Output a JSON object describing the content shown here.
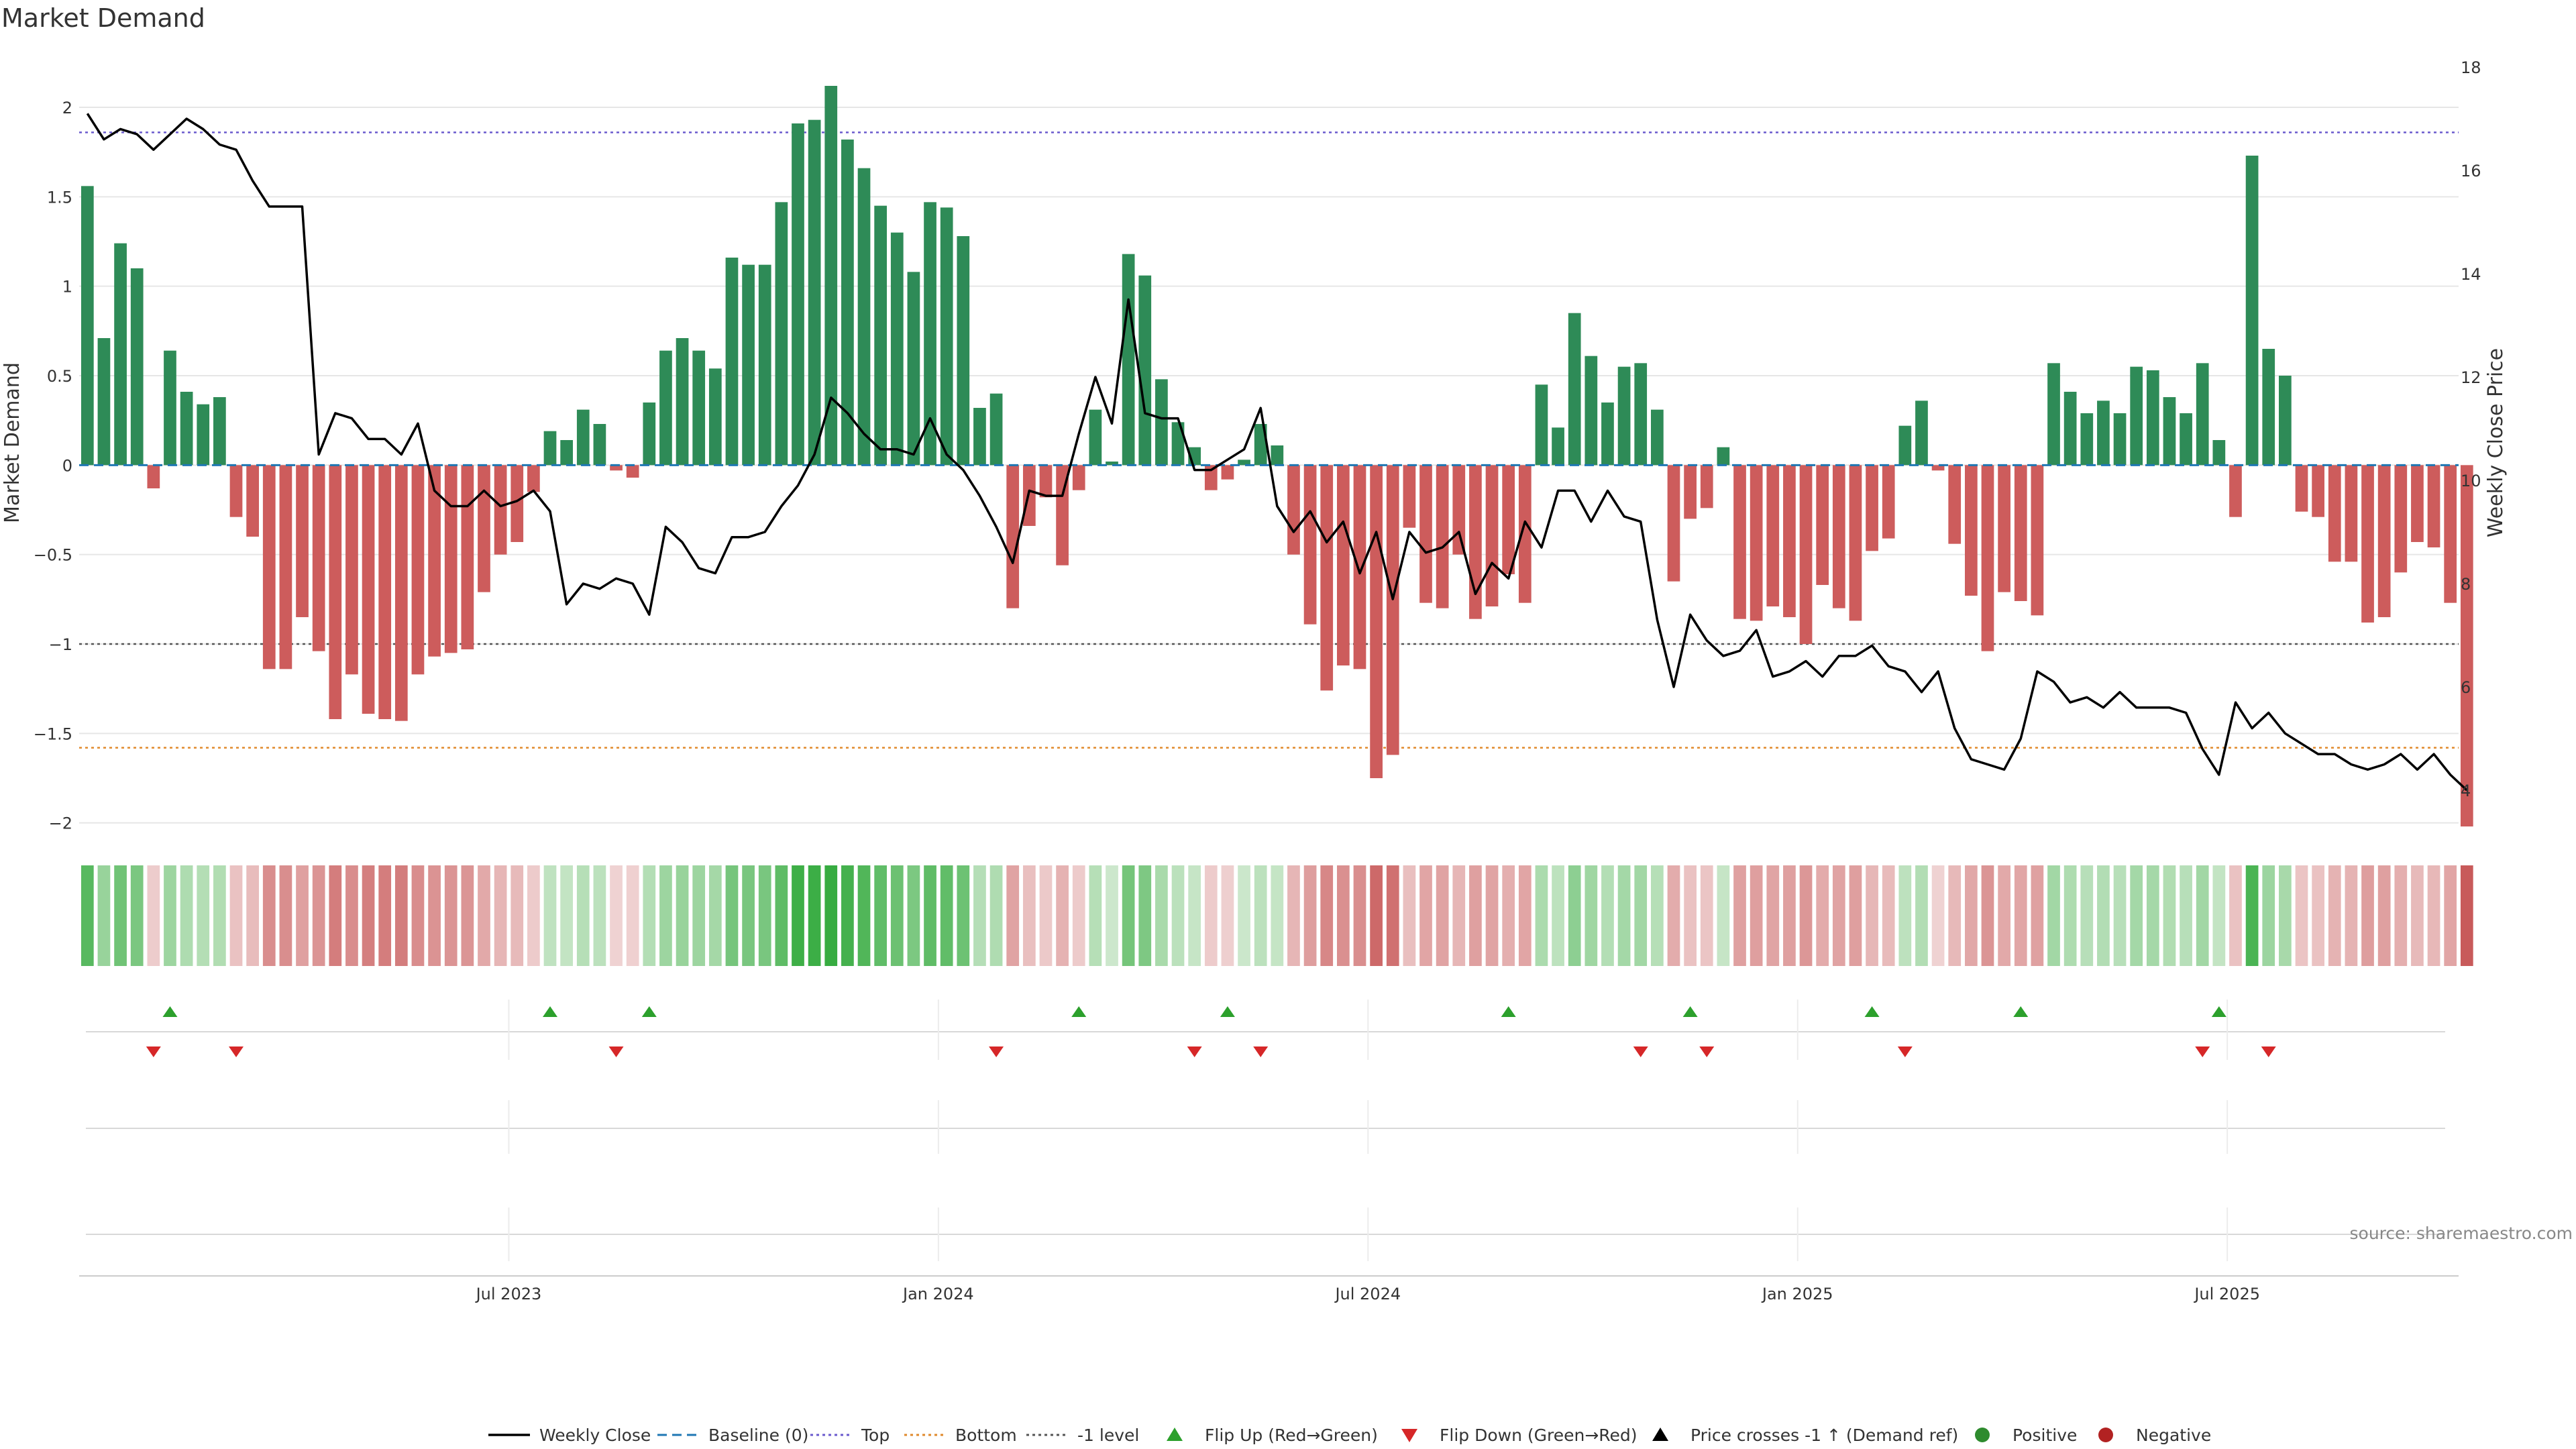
{
  "chart_data": {
    "type": "bar",
    "title": "Market Demand",
    "ylabel": "Market Demand",
    "y2label": "Weekly Close Price",
    "ylim": [
      -2.05,
      2.3
    ],
    "y2lim": [
      4,
      18
    ],
    "yticks": [
      2,
      1.5,
      1,
      0.5,
      0,
      -0.5,
      -1,
      -1.5,
      -2
    ],
    "ytick_labels": [
      "2",
      "1.5",
      "1",
      "0.5",
      "0",
      "−0.5",
      "−1",
      "−1.5",
      "−2"
    ],
    "y2ticks": [
      18,
      16,
      14,
      12,
      10,
      8,
      6,
      4
    ],
    "xticks": [
      {
        "label": "Jul 2023",
        "week": 26
      },
      {
        "label": "Jan 2024",
        "week": 52
      },
      {
        "label": "Jul 2024",
        "week": 78
      },
      {
        "label": "Jan 2025",
        "week": 104
      },
      {
        "label": "Jul 2025",
        "week": 130
      }
    ],
    "reference_lines": {
      "baseline": 0,
      "top": 1.86,
      "bottom": -1.58,
      "minus_one": -1
    },
    "weeks": 144,
    "demand": [
      1.56,
      0.71,
      1.24,
      1.1,
      -0.13,
      0.64,
      0.41,
      0.34,
      0.38,
      -0.29,
      -0.4,
      -1.14,
      -1.14,
      -0.85,
      -1.04,
      -1.42,
      -1.17,
      -1.39,
      -1.42,
      -1.43,
      -1.17,
      -1.07,
      -1.05,
      -1.03,
      -0.71,
      -0.5,
      -0.43,
      -0.15,
      0.19,
      0.14,
      0.31,
      0.23,
      -0.03,
      -0.07,
      0.35,
      0.64,
      0.71,
      0.64,
      0.54,
      1.16,
      1.12,
      1.12,
      1.47,
      1.91,
      1.93,
      2.12,
      1.82,
      1.66,
      1.45,
      1.3,
      1.08,
      1.47,
      1.44,
      1.28,
      0.32,
      0.4,
      -0.8,
      -0.34,
      -0.18,
      -0.56,
      -0.14,
      0.31,
      0.02,
      1.18,
      1.06,
      0.48,
      0.24,
      0.1,
      -0.14,
      -0.08,
      0.03,
      0.23,
      0.11,
      -0.5,
      -0.89,
      -1.26,
      -1.12,
      -1.14,
      -1.75,
      -1.62,
      -0.35,
      -0.77,
      -0.8,
      -0.5,
      -0.86,
      -0.79,
      -0.61,
      -0.77,
      0.45,
      0.21,
      0.85,
      0.61,
      0.35,
      0.55,
      0.57,
      0.31,
      -0.65,
      -0.3,
      -0.24,
      0.1,
      -0.86,
      -0.87,
      -0.79,
      -0.85,
      -1.0,
      -0.67,
      -0.8,
      -0.87,
      -0.48,
      -0.41,
      0.22,
      0.36,
      -0.03,
      -0.44,
      -0.73,
      -1.04,
      -0.71,
      -0.76,
      -0.84,
      0.57,
      0.41,
      0.29,
      0.36,
      0.29,
      0.55,
      0.53,
      0.38,
      0.29,
      0.57,
      0.14,
      -0.29,
      1.73,
      0.65,
      0.5,
      -0.26,
      -0.29,
      -0.54,
      -0.54,
      -0.88,
      -0.85,
      -0.6,
      -0.43,
      -0.46,
      -0.77,
      -2.02
    ],
    "price": [
      17.1,
      16.6,
      16.8,
      16.7,
      16.4,
      16.7,
      17.0,
      16.8,
      16.5,
      16.4,
      15.8,
      15.3,
      15.3,
      15.3,
      10.5,
      11.3,
      11.2,
      10.8,
      10.8,
      10.5,
      11.1,
      9.8,
      9.5,
      9.5,
      9.8,
      9.5,
      9.6,
      9.8,
      9.4,
      7.6,
      8.0,
      7.9,
      8.1,
      8.0,
      7.4,
      9.1,
      8.8,
      8.3,
      8.2,
      8.9,
      8.9,
      9.0,
      9.5,
      9.9,
      10.5,
      11.6,
      11.3,
      10.9,
      10.6,
      10.6,
      10.5,
      11.2,
      10.5,
      10.2,
      9.7,
      9.1,
      8.4,
      9.8,
      9.7,
      9.7,
      10.9,
      12.0,
      11.1,
      13.5,
      11.3,
      11.2,
      11.2,
      10.2,
      10.2,
      10.4,
      10.6,
      11.4,
      9.5,
      9.0,
      9.4,
      8.8,
      9.2,
      8.2,
      9.0,
      7.7,
      9.0,
      8.6,
      8.7,
      9.0,
      7.8,
      8.4,
      8.1,
      9.2,
      8.7,
      9.8,
      9.8,
      9.2,
      9.8,
      9.3,
      9.2,
      7.3,
      6.0,
      7.4,
      6.9,
      6.6,
      6.7,
      7.1,
      6.2,
      6.3,
      6.5,
      6.2,
      6.6,
      6.6,
      6.8,
      6.4,
      6.3,
      5.9,
      6.3,
      5.2,
      4.6,
      4.5,
      4.4,
      5.0,
      6.3,
      6.1,
      5.7,
      5.8,
      5.6,
      5.9,
      5.6,
      5.6,
      5.6,
      5.5,
      4.8,
      4.3,
      5.7,
      5.2,
      5.5,
      5.1,
      4.9,
      4.7,
      4.7,
      4.5,
      4.4,
      4.5,
      4.7,
      4.4,
      4.7,
      4.3,
      4.0
    ],
    "flip_up_weeks": [
      5,
      28,
      34,
      60,
      69,
      86,
      97,
      108,
      117,
      129
    ],
    "flip_down_weeks": [
      4,
      9,
      32,
      55,
      67,
      71,
      94,
      98,
      110,
      128,
      132
    ],
    "legend": [
      "Weekly Close",
      "Baseline (0)",
      "Top",
      "Bottom",
      "-1 level",
      "Flip Up (Red→Green)",
      "Flip Down (Green→Red)",
      "Price crosses -1 ↑ (Demand ref)",
      "Positive",
      "Negative"
    ],
    "source": "source: sharemaestro.com"
  },
  "colors": {
    "positive": "#2e8b57",
    "negative": "#cd5c5c",
    "price": "#000000",
    "baseline": "#1f77b4",
    "top": "#6a5acd",
    "bottom": "#e08a2c",
    "minus_one": "#555555",
    "flip_up": "#2ca02c",
    "flip_down": "#d62728",
    "grid": "#e6e6e6"
  }
}
